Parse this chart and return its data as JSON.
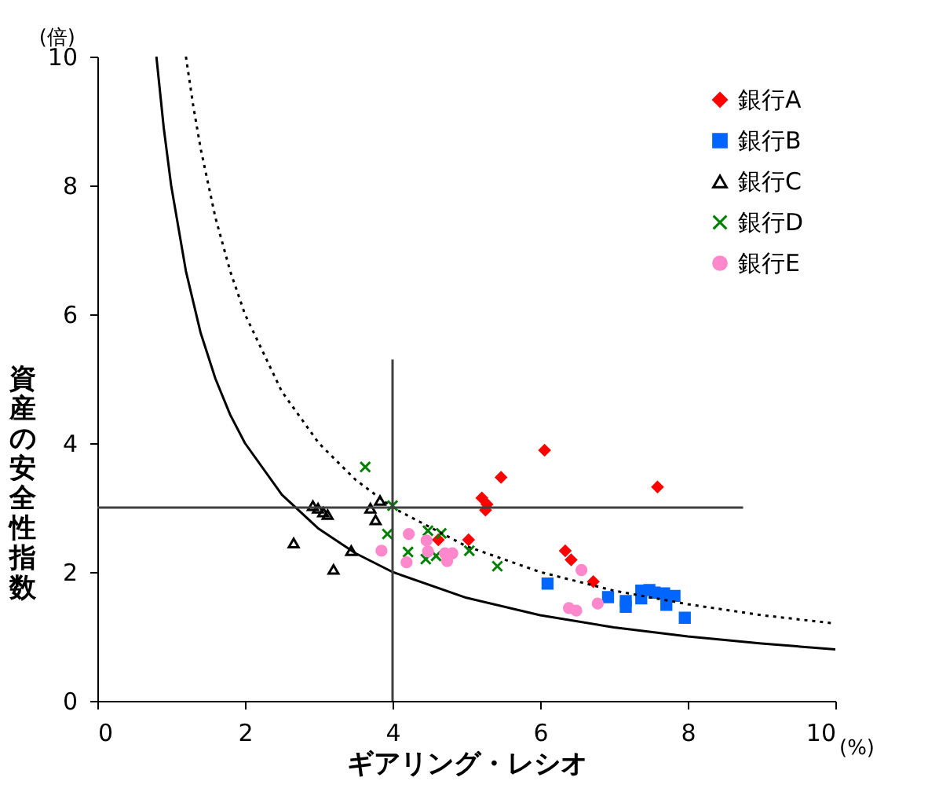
{
  "chart_data": {
    "type": "scatter",
    "xlabel": "ギアリング・レシオ",
    "ylabel": "資産の安全性指数",
    "annotations": [
      "(倍)",
      "(%)"
    ],
    "xlim": [
      0,
      10
    ],
    "xticks": [
      0,
      2,
      4,
      6,
      8,
      10
    ],
    "ylim": [
      0,
      10
    ],
    "yticks": [
      0,
      2,
      4,
      6,
      8,
      10
    ],
    "grid": false,
    "legend": "top right",
    "series": [
      {
        "name": "銀行A",
        "color": "#ff0000",
        "marker": "diamond",
        "x": [
          6.06,
          5.47,
          5.21,
          5.28,
          5.26,
          7.59,
          5.03,
          4.62,
          6.34,
          6.42,
          6.72
        ],
        "values": [
          3.89,
          3.47,
          3.15,
          3.05,
          2.96,
          3.32,
          2.5,
          2.5,
          2.33,
          2.19,
          1.85
        ]
      },
      {
        "name": "銀行B",
        "color": "#0066ff",
        "marker": "square",
        "x": [
          6.1,
          6.92,
          7.16,
          7.16,
          7.37,
          7.37,
          7.48,
          7.55,
          7.68,
          7.71,
          7.82,
          7.96
        ],
        "values": [
          1.82,
          1.61,
          1.55,
          1.46,
          1.71,
          1.59,
          1.72,
          1.68,
          1.67,
          1.49,
          1.63,
          1.29
        ]
      },
      {
        "name": "銀行C",
        "color": "#000000",
        "marker": "triangle",
        "x": [
          2.66,
          2.92,
          2.99,
          3.06,
          3.12,
          3.2,
          3.44,
          3.7,
          3.83,
          3.77
        ],
        "values": [
          2.45,
          3.03,
          2.99,
          2.93,
          2.89,
          2.04,
          2.33,
          2.99,
          3.11,
          2.81
        ]
      },
      {
        "name": "銀行D",
        "color": "#008000",
        "marker": "cross",
        "x": [
          3.63,
          4.0,
          3.93,
          4.21,
          4.45,
          4.48,
          4.66,
          4.59,
          5.04,
          5.42
        ],
        "values": [
          3.63,
          3.03,
          2.59,
          2.31,
          2.2,
          2.64,
          2.6,
          2.25,
          2.33,
          2.09
        ]
      },
      {
        "name": "銀行E",
        "color": "#ff88cc",
        "marker": "circle",
        "x": [
          3.85,
          4.19,
          4.22,
          4.46,
          4.48,
          4.71,
          4.74,
          4.81,
          6.56,
          6.39,
          6.49,
          6.78
        ],
        "values": [
          2.33,
          2.15,
          2.59,
          2.49,
          2.32,
          2.29,
          2.17,
          2.29,
          2.03,
          1.44,
          1.4,
          1.51
        ]
      },
      {
        "type": "line",
        "color": "#000000",
        "line_style": "solid",
        "marker": "none",
        "x": [
          0.8,
          0.9,
          1,
          1.2,
          1.4,
          1.6,
          1.8,
          2,
          2.5,
          3,
          3.5,
          4,
          5,
          6,
          7,
          8,
          9,
          10
        ],
        "values": [
          10,
          8.89,
          8,
          6.67,
          5.71,
          5,
          4.44,
          4,
          3.2,
          2.67,
          2.29,
          2,
          1.6,
          1.33,
          1.14,
          1,
          0.89,
          0.8
        ]
      },
      {
        "type": "line",
        "color": "#000000",
        "line_style": "dotted",
        "marker": "none",
        "x": [
          1.2,
          1.3,
          1.4,
          1.6,
          1.8,
          2,
          2.5,
          3,
          3.5,
          4,
          5,
          6,
          7,
          8,
          9,
          10
        ],
        "values": [
          10,
          9.23,
          8.57,
          7.5,
          6.67,
          6,
          4.8,
          4,
          3.43,
          3,
          2.4,
          2,
          1.71,
          1.5,
          1.33,
          1.2
        ]
      },
      {
        "type": "line",
        "color": "#404040",
        "line_style": "solid",
        "marker": "none",
        "x": [
          0,
          8.75
        ],
        "values": [
          3,
          3
        ]
      },
      {
        "type": "line",
        "color": "#404040",
        "line_style": "solid",
        "marker": "none",
        "x": [
          4,
          4
        ],
        "values": [
          0,
          5.3
        ]
      }
    ]
  }
}
